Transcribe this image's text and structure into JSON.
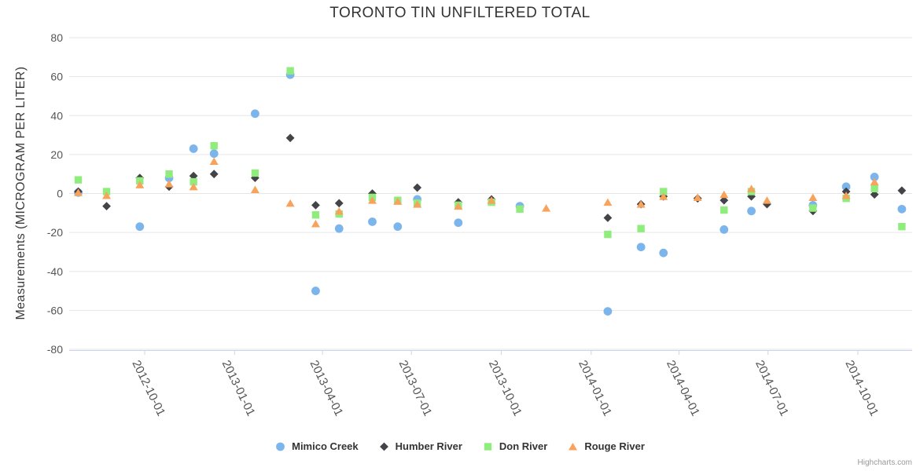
{
  "chart_data": {
    "type": "scatter",
    "title": "TORONTO TIN UNFILTERED TOTAL",
    "xlabel": "",
    "ylabel": "Measurements (MICROGRAM PER LITER)",
    "ylim": [
      -80,
      80
    ],
    "y_tick_interval": 20,
    "grid": "horizontal-only",
    "legend_position": "bottom-center",
    "x_ticks": [
      "2012-10-01",
      "2013-01-01",
      "2013-04-01",
      "2013-07-01",
      "2013-10-01",
      "2014-01-01",
      "2014-04-01",
      "2014-07-01",
      "2014-10-01"
    ],
    "colors": {
      "gridline": "#e6e6e6",
      "axis_line": "#ccd6eb",
      "tick_mark": "#ccd6eb",
      "axis_label": "#555555",
      "title_text": "#333333",
      "legend_text": "#333333",
      "credit_text": "#999999"
    },
    "series": [
      {
        "name": "Mimico Creek",
        "color": "#7cb5ec",
        "marker": "circle",
        "points": [
          [
            "2012-07-25",
            0.5
          ],
          [
            "2012-09-26",
            -17
          ],
          [
            "2012-10-26",
            8
          ],
          [
            "2012-11-20",
            23
          ],
          [
            "2012-12-11",
            20.5
          ],
          [
            "2013-01-22",
            41
          ],
          [
            "2013-02-27",
            61
          ],
          [
            "2013-03-25",
            -50
          ],
          [
            "2013-04-18",
            -18
          ],
          [
            "2013-05-22",
            -14.5
          ],
          [
            "2013-06-17",
            -17
          ],
          [
            "2013-07-07",
            -3
          ],
          [
            "2013-08-18",
            -15
          ],
          [
            "2013-10-20",
            -6.5
          ],
          [
            "2014-01-18",
            -60.5
          ],
          [
            "2014-02-21",
            -27.5
          ],
          [
            "2014-03-16",
            -30.5
          ],
          [
            "2014-05-17",
            -18.5
          ],
          [
            "2014-06-14",
            -9
          ],
          [
            "2014-08-16",
            -6
          ],
          [
            "2014-09-19",
            3.5
          ],
          [
            "2014-10-18",
            8.5
          ],
          [
            "2014-11-15",
            -8
          ]
        ]
      },
      {
        "name": "Humber River",
        "color": "#434348",
        "marker": "diamond",
        "points": [
          [
            "2012-07-25",
            1
          ],
          [
            "2012-08-23",
            -6.5
          ],
          [
            "2012-09-26",
            8
          ],
          [
            "2012-10-26",
            3.5
          ],
          [
            "2012-11-20",
            9
          ],
          [
            "2012-12-11",
            10
          ],
          [
            "2013-01-22",
            8
          ],
          [
            "2013-02-27",
            28.5
          ],
          [
            "2013-03-25",
            -6
          ],
          [
            "2013-04-18",
            -5
          ],
          [
            "2013-05-22",
            0
          ],
          [
            "2013-07-07",
            3
          ],
          [
            "2013-08-18",
            -4.5
          ],
          [
            "2013-09-21",
            -3
          ],
          [
            "2014-01-18",
            -12.5
          ],
          [
            "2014-02-21",
            -5.5
          ],
          [
            "2014-03-16",
            -1.5
          ],
          [
            "2014-04-20",
            -2.5
          ],
          [
            "2014-05-17",
            -3.5
          ],
          [
            "2014-06-14",
            -1.5
          ],
          [
            "2014-06-30",
            -5.5
          ],
          [
            "2014-08-16",
            -9
          ],
          [
            "2014-09-19",
            1
          ],
          [
            "2014-10-18",
            -0.5
          ],
          [
            "2014-11-15",
            1.5
          ]
        ]
      },
      {
        "name": "Don River",
        "color": "#90ed7d",
        "marker": "square",
        "points": [
          [
            "2012-07-25",
            7
          ],
          [
            "2012-08-23",
            1
          ],
          [
            "2012-09-26",
            6.5
          ],
          [
            "2012-10-26",
            10
          ],
          [
            "2012-11-20",
            6
          ],
          [
            "2012-12-11",
            24.5
          ],
          [
            "2013-01-22",
            10.5
          ],
          [
            "2013-02-27",
            63
          ],
          [
            "2013-03-25",
            -11
          ],
          [
            "2013-04-18",
            -10.5
          ],
          [
            "2013-05-22",
            -2
          ],
          [
            "2013-06-17",
            -3.5
          ],
          [
            "2013-07-07",
            -5
          ],
          [
            "2013-08-18",
            -6
          ],
          [
            "2013-09-21",
            -4.5
          ],
          [
            "2013-10-20",
            -8
          ],
          [
            "2014-01-18",
            -21
          ],
          [
            "2014-02-21",
            -18
          ],
          [
            "2014-03-16",
            1
          ],
          [
            "2014-05-17",
            -8.5
          ],
          [
            "2014-06-14",
            1
          ],
          [
            "2014-08-16",
            -7.5
          ],
          [
            "2014-09-19",
            -2.5
          ],
          [
            "2014-10-18",
            2.5
          ],
          [
            "2014-11-15",
            -17
          ]
        ]
      },
      {
        "name": "Rouge River",
        "color": "#f7a35c",
        "marker": "triangle",
        "points": [
          [
            "2012-07-25",
            0.5
          ],
          [
            "2012-08-23",
            -1
          ],
          [
            "2012-09-26",
            4.5
          ],
          [
            "2012-10-26",
            5
          ],
          [
            "2012-11-20",
            3.5
          ],
          [
            "2012-12-11",
            16.5
          ],
          [
            "2013-01-22",
            2
          ],
          [
            "2013-02-27",
            -5
          ],
          [
            "2013-03-25",
            -15.5
          ],
          [
            "2013-04-18",
            -9
          ],
          [
            "2013-05-22",
            -3.5
          ],
          [
            "2013-06-17",
            -4
          ],
          [
            "2013-07-07",
            -5.5
          ],
          [
            "2013-08-18",
            -6.5
          ],
          [
            "2013-09-21",
            -3.5
          ],
          [
            "2013-11-16",
            -7.5
          ],
          [
            "2014-01-18",
            -4.5
          ],
          [
            "2014-02-21",
            -5.5
          ],
          [
            "2014-03-16",
            -1.5
          ],
          [
            "2014-04-20",
            -2
          ],
          [
            "2014-05-17",
            -0.5
          ],
          [
            "2014-06-14",
            2.5
          ],
          [
            "2014-06-30",
            -3.5
          ],
          [
            "2014-08-16",
            -2
          ],
          [
            "2014-09-19",
            -1
          ],
          [
            "2014-10-18",
            6
          ]
        ]
      }
    ]
  },
  "credit": {
    "label": "Highcharts.com"
  }
}
